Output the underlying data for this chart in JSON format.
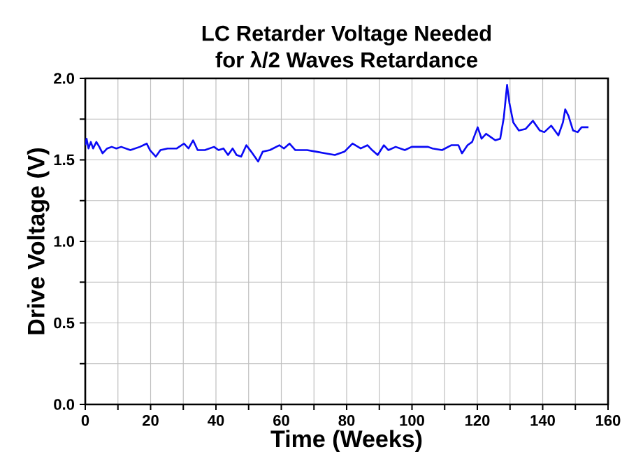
{
  "chart_data": {
    "type": "line",
    "title": "LC Retarder Voltage Needed\nfor λ/2 Waves Retardance",
    "xlabel": "Time (Weeks)",
    "ylabel": "Drive Voltage (V)",
    "xlim": [
      0,
      160
    ],
    "ylim": [
      0,
      2.0
    ],
    "xticks": [
      0,
      {
        "value": 10,
        "label": null
      },
      20,
      {
        "value": 30,
        "label": null
      },
      40,
      {
        "value": 50,
        "label": null
      },
      60,
      {
        "value": 70,
        "label": null
      },
      80,
      {
        "value": 90,
        "label": null
      },
      100,
      {
        "value": 110,
        "label": null
      },
      120,
      {
        "value": 130,
        "label": null
      },
      140,
      {
        "value": 150,
        "label": null
      },
      160
    ],
    "yticks": [
      {
        "value": 0,
        "label": "0.0"
      },
      {
        "value": 0.25,
        "label": null
      },
      {
        "value": 0.5,
        "label": "0.5"
      },
      {
        "value": 0.75,
        "label": null
      },
      {
        "value": 1.0,
        "label": "1.0"
      },
      {
        "value": 1.25,
        "label": null
      },
      {
        "value": 1.5,
        "label": "1.5"
      },
      {
        "value": 1.75,
        "label": null
      },
      {
        "value": 2.0,
        "label": "2.0"
      }
    ],
    "grid": true,
    "marker": "none",
    "line_style": "solid",
    "series": [
      {
        "color": "#0a0af5",
        "x": [
          0,
          0.4,
          1,
          1.7,
          2.4,
          3.4,
          4.3,
          5.3,
          6.7,
          8.1,
          9.5,
          11,
          13.8,
          16.7,
          18.8,
          19.8,
          21.6,
          23,
          25.2,
          28,
          30.2,
          31.6,
          33,
          34.4,
          36.6,
          39.4,
          40.8,
          42.3,
          43.7,
          45.1,
          46.3,
          47.7,
          49.3,
          50.8,
          52.9,
          54.3,
          56.5,
          59.4,
          60.8,
          62.5,
          64.3,
          67.9,
          70.8,
          73.6,
          76.4,
          79.3,
          81.8,
          84.3,
          86.4,
          87.8,
          89.5,
          91.4,
          92.8,
          95,
          97.8,
          99.9,
          104.9,
          106.3,
          109.2,
          112,
          114.2,
          115.3,
          117,
          118.4,
          120.1,
          121.3,
          122.7,
          124.1,
          125.5,
          127,
          128.1,
          129.1,
          129.8,
          131,
          132.7,
          134.8,
          137,
          139.1,
          140.5,
          142.6,
          144.8,
          146.2,
          146.9,
          147.9,
          149.3,
          150.7,
          151.9,
          154
        ],
        "values": [
          1.59,
          1.63,
          1.57,
          1.61,
          1.57,
          1.61,
          1.58,
          1.54,
          1.57,
          1.58,
          1.57,
          1.58,
          1.56,
          1.58,
          1.6,
          1.56,
          1.52,
          1.56,
          1.57,
          1.57,
          1.6,
          1.57,
          1.62,
          1.56,
          1.56,
          1.58,
          1.56,
          1.57,
          1.53,
          1.57,
          1.53,
          1.52,
          1.59,
          1.55,
          1.49,
          1.55,
          1.56,
          1.59,
          1.57,
          1.6,
          1.56,
          1.56,
          1.55,
          1.54,
          1.53,
          1.55,
          1.6,
          1.57,
          1.59,
          1.56,
          1.53,
          1.59,
          1.56,
          1.58,
          1.56,
          1.58,
          1.58,
          1.57,
          1.56,
          1.59,
          1.59,
          1.54,
          1.59,
          1.61,
          1.7,
          1.63,
          1.66,
          1.64,
          1.62,
          1.63,
          1.76,
          1.96,
          1.85,
          1.73,
          1.68,
          1.69,
          1.74,
          1.68,
          1.67,
          1.71,
          1.65,
          1.73,
          1.81,
          1.77,
          1.68,
          1.67,
          1.7,
          1.7
        ]
      }
    ]
  }
}
